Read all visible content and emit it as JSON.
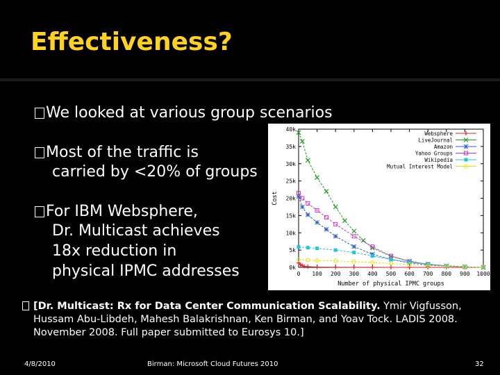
{
  "slide": {
    "title": "Effectiveness?",
    "bullets": [
      "We looked at various group scenarios",
      "Most of the traffic is",
      "carried by <20% of groups",
      "For IBM Websphere,",
      "Dr. Multicast achieves",
      "18x reduction in",
      "physical IPMC addresses"
    ],
    "reference_bold": "[Dr. Multicast: Rx for Data Center Communication Scalability.",
    "reference_rest": " Ymir Vigfusson, Hussam Abu-Libdeh, Mahesh Balakrishnan, Ken Birman, and Yoav Tock.  LADIS 2008.  November 2008.  Full paper submitted to Eurosys 10.]",
    "footer_date": "4/8/2010",
    "footer_center": "Birman: Microsoft Cloud Futures 2010",
    "footer_page": "32"
  },
  "colors": {
    "title": "#ffd21f",
    "background": "#000000",
    "chart_background": "#ffffff"
  },
  "chart_data": {
    "type": "line",
    "xlabel": "Number of physical IPMC groups",
    "ylabel": "Cost",
    "xlim": [
      0,
      1000
    ],
    "ylim": [
      0,
      40000
    ],
    "x_ticks": [
      "0",
      "100",
      "200",
      "300",
      "400",
      "500",
      "600",
      "700",
      "800",
      "900",
      "1000"
    ],
    "y_ticks": [
      "0k",
      "5k",
      "10k",
      "15k",
      "20k",
      "25k",
      "30k",
      "35k",
      "40k"
    ],
    "legend_position": "top-right",
    "series": [
      {
        "name": "Websphere",
        "color": "#e8232a",
        "x": [
          0,
          10,
          20,
          30,
          50,
          100,
          200,
          300,
          400,
          500,
          600,
          700,
          800,
          900,
          1000
        ],
        "y": [
          1300,
          800,
          500,
          300,
          200,
          100,
          50,
          30,
          20,
          10,
          5,
          3,
          2,
          1,
          0
        ]
      },
      {
        "name": "LiveJournal",
        "color": "#1aa01a",
        "x": [
          0,
          20,
          50,
          100,
          150,
          200,
          250,
          300,
          350,
          400,
          500,
          600,
          700,
          800,
          900,
          1000
        ],
        "y": [
          39000,
          36500,
          31000,
          26000,
          22000,
          17500,
          13500,
          10500,
          7800,
          5600,
          3200,
          1800,
          900,
          400,
          150,
          0
        ]
      },
      {
        "name": "Amazon",
        "color": "#2c5fc8",
        "x": [
          0,
          20,
          50,
          100,
          150,
          200,
          300,
          400,
          500,
          600,
          700,
          800,
          900,
          1000
        ],
        "y": [
          20500,
          17500,
          15200,
          13000,
          11000,
          9000,
          6000,
          3800,
          2300,
          1300,
          700,
          350,
          150,
          0
        ]
      },
      {
        "name": "Yahoo Groups",
        "color": "#cc33cc",
        "x": [
          0,
          20,
          50,
          100,
          150,
          200,
          300,
          400,
          500,
          600,
          700,
          800,
          900,
          1000
        ],
        "y": [
          21500,
          20000,
          18500,
          16500,
          14500,
          12500,
          9000,
          6000,
          3300,
          1700,
          900,
          400,
          150,
          0
        ]
      },
      {
        "name": "Wikipedia",
        "color": "#21c4d8",
        "x": [
          0,
          50,
          100,
          200,
          300,
          400,
          500,
          600,
          700,
          800,
          900,
          1000
        ],
        "y": [
          5900,
          5700,
          5500,
          5000,
          4300,
          3300,
          2300,
          1500,
          900,
          500,
          200,
          0
        ]
      },
      {
        "name": "Mutual Interest Model",
        "color": "#e6e600",
        "x": [
          0,
          50,
          100,
          200,
          300,
          400,
          500,
          600,
          700,
          800,
          900,
          1000
        ],
        "y": [
          2200,
          2100,
          2000,
          1850,
          1650,
          1400,
          1100,
          800,
          500,
          300,
          150,
          0
        ]
      }
    ]
  }
}
